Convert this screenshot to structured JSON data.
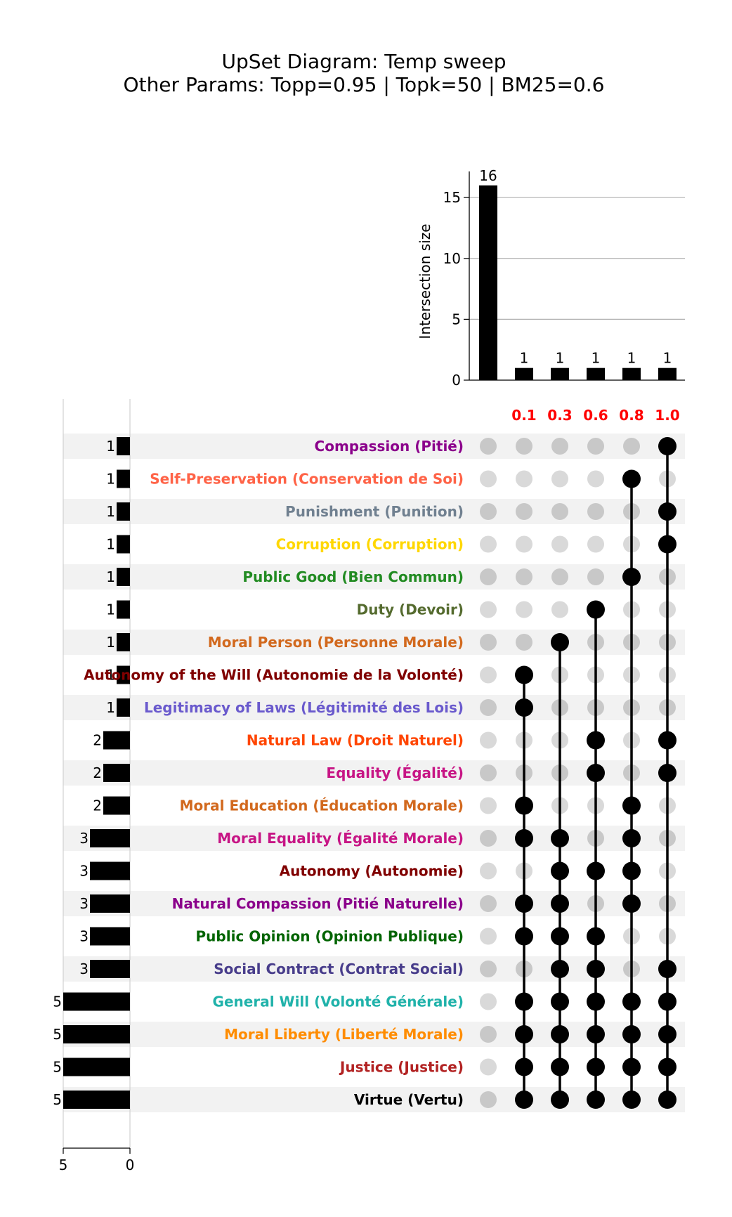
{
  "title_line1": "UpSet Diagram: Temp sweep",
  "title_line2": "Other Params: Topp=0.95 | Topk=50 | BM25=0.6",
  "chart_data": {
    "type": "upset",
    "intersection_axis": {
      "label": "Intersection size",
      "ticks": [
        0,
        5,
        10,
        15
      ],
      "range": [
        0,
        16.8
      ]
    },
    "set_size_axis": {
      "ticks": [
        5,
        0
      ],
      "range": [
        0,
        5
      ]
    },
    "intersection_labels": [
      "",
      "0.1",
      "0.3",
      "0.6",
      "0.8",
      "1.0"
    ],
    "intersection_label_color": "#ff0000",
    "intersection_sizes": [
      16,
      1,
      1,
      1,
      1,
      1
    ],
    "sets": [
      {
        "name": "Compassion (Pitié)",
        "size": 1,
        "color": "#8b008b",
        "members": [
          5
        ]
      },
      {
        "name": "Self-Preservation (Conservation de Soi)",
        "size": 1,
        "color": "#ff6347",
        "members": [
          4
        ]
      },
      {
        "name": "Punishment (Punition)",
        "size": 1,
        "color": "#708090",
        "members": [
          5
        ]
      },
      {
        "name": "Corruption (Corruption)",
        "size": 1,
        "color": "#ffd700",
        "members": [
          5
        ]
      },
      {
        "name": "Public Good (Bien Commun)",
        "size": 1,
        "color": "#228b22",
        "members": [
          4
        ]
      },
      {
        "name": "Duty (Devoir)",
        "size": 1,
        "color": "#556b2f",
        "members": [
          3
        ]
      },
      {
        "name": "Moral Person (Personne Morale)",
        "size": 1,
        "color": "#d2691e",
        "members": [
          2
        ]
      },
      {
        "name": "Autonomy of the Will (Autonomie de la Volonté)",
        "size": 1,
        "color": "#800000",
        "members": [
          1
        ]
      },
      {
        "name": "Legitimacy of Laws (Légitimité des Lois)",
        "size": 1,
        "color": "#6a5acd",
        "members": [
          1
        ]
      },
      {
        "name": "Natural Law (Droit Naturel)",
        "size": 2,
        "color": "#ff4500",
        "members": [
          3,
          5
        ]
      },
      {
        "name": "Equality (Égalité)",
        "size": 2,
        "color": "#c71585",
        "members": [
          3,
          5
        ]
      },
      {
        "name": "Moral Education (Éducation Morale)",
        "size": 2,
        "color": "#d2691e",
        "members": [
          1,
          4
        ]
      },
      {
        "name": "Moral Equality (Égalité Morale)",
        "size": 3,
        "color": "#c71585",
        "members": [
          1,
          2,
          4
        ]
      },
      {
        "name": "Autonomy (Autonomie)",
        "size": 3,
        "color": "#800000",
        "members": [
          2,
          3,
          4
        ]
      },
      {
        "name": "Natural Compassion (Pitié Naturelle)",
        "size": 3,
        "color": "#8b008b",
        "members": [
          1,
          2,
          4
        ]
      },
      {
        "name": "Public Opinion (Opinion Publique)",
        "size": 3,
        "color": "#006400",
        "members": [
          1,
          2,
          3
        ]
      },
      {
        "name": "Social Contract (Contrat Social)",
        "size": 3,
        "color": "#483d8b",
        "members": [
          2,
          3,
          5
        ]
      },
      {
        "name": "General Will (Volonté Générale)",
        "size": 5,
        "color": "#20b2aa",
        "members": [
          1,
          2,
          3,
          4,
          5
        ]
      },
      {
        "name": "Moral Liberty (Liberté Morale)",
        "size": 5,
        "color": "#ff8c00",
        "members": [
          1,
          2,
          3,
          4,
          5
        ]
      },
      {
        "name": "Justice (Justice)",
        "size": 5,
        "color": "#b22222",
        "members": [
          1,
          2,
          3,
          4,
          5
        ]
      },
      {
        "name": "Virtue (Vertu)",
        "size": 5,
        "color": "#000000",
        "members": [
          1,
          2,
          3,
          4,
          5
        ]
      }
    ],
    "dot_colors": {
      "active": "#000000",
      "inactive": "#c8c8c8",
      "inactive_shaded": "#d9d9d9"
    },
    "grid": true
  }
}
